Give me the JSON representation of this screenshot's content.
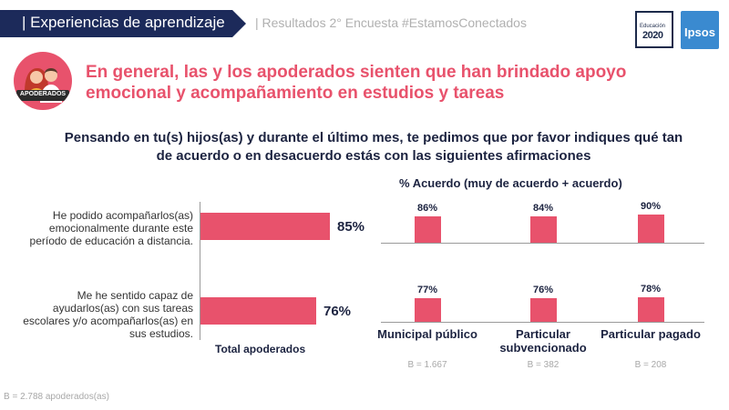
{
  "header": {
    "section_title": "| Experiencias de aprendizaje",
    "subtitle": "| Resultados 2° Encuesta #EstamosConectados",
    "logo_education_line1": "Educación",
    "logo_education_line2": "2020",
    "logo_ipsos": "Ipsos",
    "banner_color": "#1c2a5a"
  },
  "avatar_label": "APODERADOS",
  "headline": "En general, las y los apoderados sienten que han brindado apoyo emocional y acompañamiento en estudios y tareas",
  "question": "Pensando en tu(s) hijos(as) y durante el último mes, te pedimos que por favor indiques qué tan de acuerdo o en desacuerdo estás con las siguientes afirmaciones",
  "accent_color": "#e8526c",
  "footnote": "B = 2.788 apoderados(as)",
  "chart_data": [
    {
      "type": "bar",
      "orientation": "horizontal",
      "categories": [
        "He podido acompañarlos(as) emocionalmente durante este período de educación a distancia.",
        "Me he sentido capaz de ayudarlos(as) con sus tareas escolares y/o acompañarlos(as) en sus estudios."
      ],
      "values": [
        85,
        76
      ],
      "value_labels": [
        "85%",
        "76%"
      ],
      "xlabel": "Total apoderados",
      "xlim": [
        0,
        100
      ]
    },
    {
      "type": "bar",
      "title": "% Acuerdo (muy de acuerdo + acuerdo)",
      "categories": [
        "Municipal público",
        "Particular subvencionado",
        "Particular pagado"
      ],
      "bases": [
        "B = 1.667",
        "B = 382",
        "B = 208"
      ],
      "series": [
        {
          "values": [
            86,
            84,
            90
          ],
          "value_labels": [
            "86%",
            "84%",
            "90%"
          ]
        },
        {
          "values": [
            77,
            76,
            78
          ],
          "value_labels": [
            "77%",
            "76%",
            "78%"
          ]
        }
      ],
      "ylim": [
        0,
        100
      ]
    }
  ]
}
